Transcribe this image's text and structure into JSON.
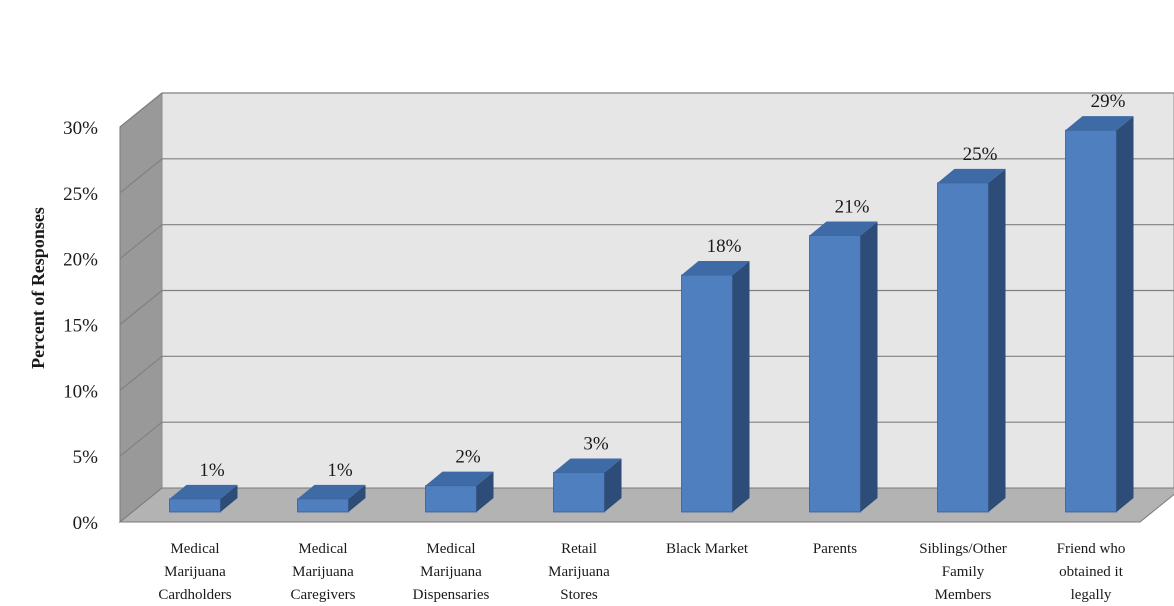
{
  "chart_data": {
    "type": "bar",
    "title": "",
    "xlabel": "",
    "ylabel": "Percent of Responses",
    "ylim": [
      0,
      30
    ],
    "yticks": [
      "0%",
      "5%",
      "10%",
      "15%",
      "20%",
      "25%",
      "30%"
    ],
    "grid": true,
    "legend": "none",
    "three_d": true,
    "categories": [
      [
        "Medical",
        "Marijuana",
        "Cardholders"
      ],
      [
        "Medical",
        "Marijuana",
        "Caregivers"
      ],
      [
        "Medical",
        "Marijuana",
        "Dispensaries"
      ],
      [
        "Retail",
        "Marijuana",
        "Stores"
      ],
      [
        "Black Market"
      ],
      [
        "Parents"
      ],
      [
        "Siblings/Other",
        "Family",
        "Members"
      ],
      [
        "Friend who",
        "obtained it",
        "legally"
      ]
    ],
    "values": [
      1,
      1,
      2,
      3,
      18,
      21,
      25,
      29
    ],
    "data_labels": [
      "1%",
      "1%",
      "2%",
      "3%",
      "18%",
      "21%",
      "25%",
      "29%"
    ],
    "colors": {
      "bar_front": "#4F7FBE",
      "bar_side": "#2E4C78",
      "bar_top": "#3E6AA6",
      "back_wall": "#E6E6E6",
      "side_wall": "#999999",
      "floor": "#B3B3B3",
      "grid": "#808080"
    }
  }
}
